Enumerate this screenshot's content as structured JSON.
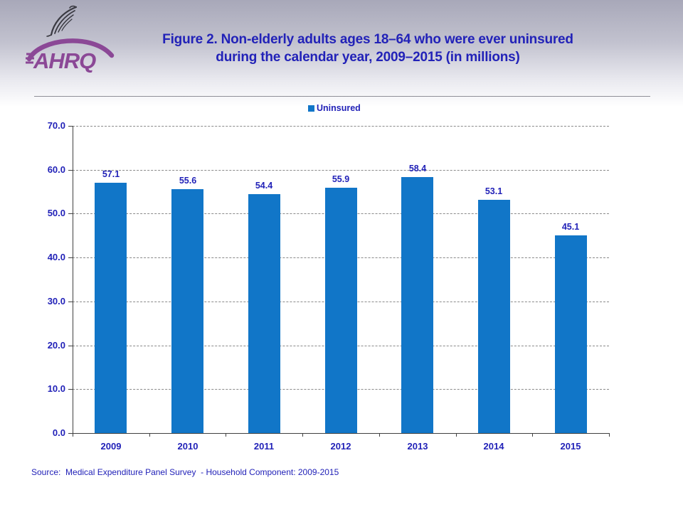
{
  "colors": {
    "text_blue": "#2222b8",
    "bar_blue": "#1176c8",
    "logo_purple": "#8b4896",
    "gridline_gray": "#8a8a8a",
    "axis_gray": "#404040",
    "eagle_gray": "#3a3a42"
  },
  "header": {
    "logo_text": "AHRQ",
    "title_lines": [
      "Figure 2. Non-elderly adults ages 18–64 who were ever uninsured",
      "during the calendar year, 2009–2015 (in millions)"
    ]
  },
  "legend": {
    "label": "Uninsured",
    "position": "top-center"
  },
  "chart_data": {
    "type": "bar",
    "title": "Figure 2. Non-elderly adults ages 18–64 who were ever uninsured during the calendar year, 2009–2015 (in millions)",
    "categories": [
      "2009",
      "2010",
      "2011",
      "2012",
      "2013",
      "2014",
      "2015"
    ],
    "series": [
      {
        "name": "Uninsured",
        "values": [
          57.1,
          55.6,
          54.4,
          55.9,
          58.4,
          53.1,
          45.1
        ]
      }
    ],
    "xlabel": "",
    "ylabel": "",
    "ylim": [
      0,
      70
    ],
    "ytick_step": 10,
    "ytick_format": "one-decimal",
    "grid": true,
    "value_labels": true,
    "legend_position": "top-center"
  },
  "source": "Source:  Medical Expenditure Panel Survey  - Household Component: 2009-2015"
}
